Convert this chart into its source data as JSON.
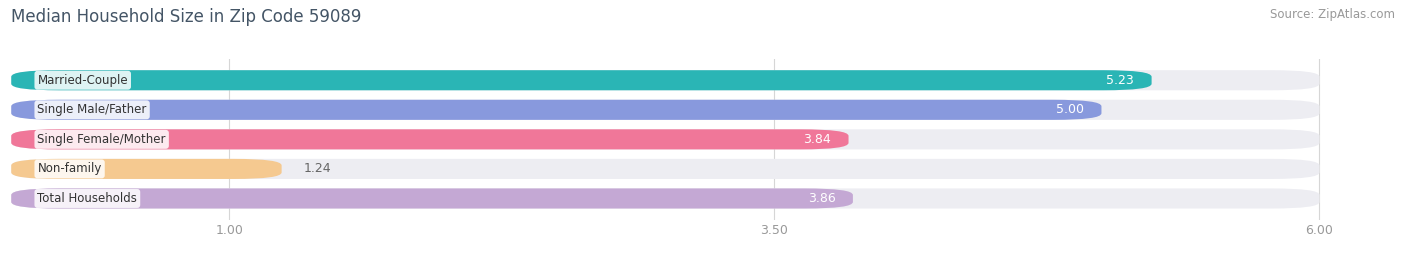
{
  "title": "Median Household Size in Zip Code 59089",
  "source": "Source: ZipAtlas.com",
  "categories": [
    "Married-Couple",
    "Single Male/Father",
    "Single Female/Mother",
    "Non-family",
    "Total Households"
  ],
  "values": [
    5.23,
    5.0,
    3.84,
    1.24,
    3.86
  ],
  "bar_colors": [
    "#2ab5b5",
    "#8899dd",
    "#f07799",
    "#f5c990",
    "#c4a8d4"
  ],
  "bar_bg_color": "#ededf2",
  "xlim": [
    0,
    6.3
  ],
  "xmin": 0,
  "xmax": 6.0,
  "xticks": [
    1.0,
    3.5,
    6.0
  ],
  "label_inside_color": "#ffffff",
  "label_outside_color": "#666666",
  "title_fontsize": 12,
  "source_fontsize": 8.5,
  "tick_fontsize": 9,
  "bar_label_fontsize": 9,
  "category_fontsize": 8.5,
  "bar_height": 0.68,
  "bar_gap": 0.32,
  "background_color": "#ffffff",
  "inside_threshold": 2.5
}
